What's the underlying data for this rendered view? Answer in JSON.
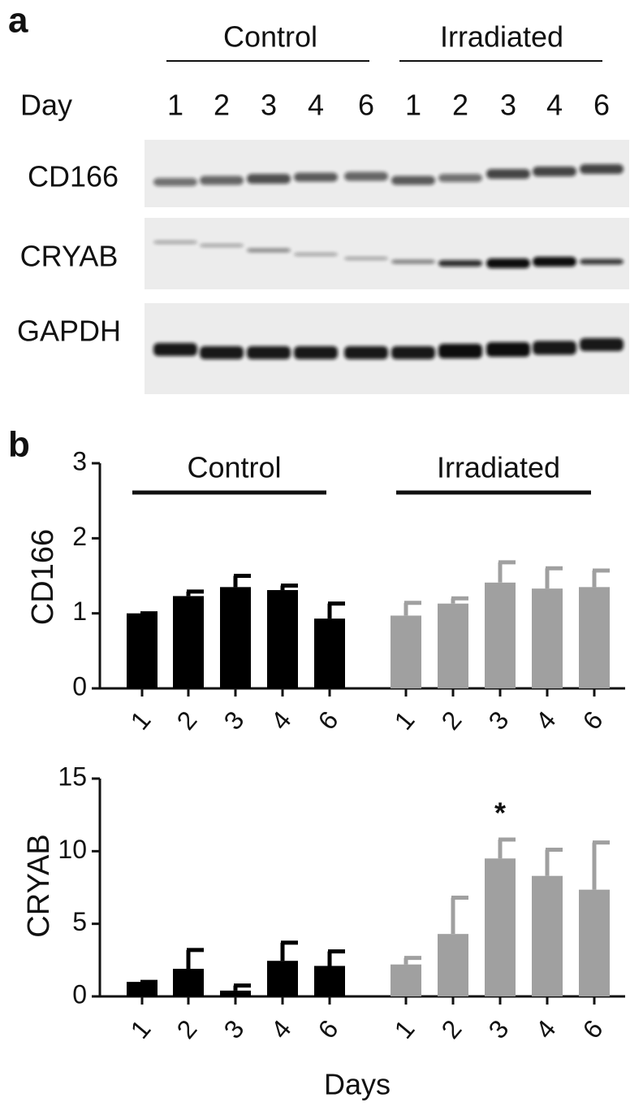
{
  "panel_a": {
    "label": "a",
    "groups": [
      "Control",
      "Irradiated"
    ],
    "day_label": "Day",
    "days": [
      "1",
      "2",
      "3",
      "4",
      "6"
    ],
    "rows": [
      "CD166",
      "CRYAB",
      "GAPDH"
    ]
  },
  "panel_b": {
    "label": "b"
  },
  "chart_data": [
    {
      "type": "bar",
      "y_label": "CD166",
      "categories": [
        "1",
        "2",
        "3",
        "4",
        "6"
      ],
      "series": [
        {
          "name": "Control",
          "color": "#000000",
          "values": [
            1.0,
            1.23,
            1.35,
            1.31,
            0.93
          ],
          "errors": [
            0,
            0.06,
            0.15,
            0.06,
            0.2
          ]
        },
        {
          "name": "Irradiated",
          "color": "#a0a0a0",
          "values": [
            0.97,
            1.13,
            1.41,
            1.33,
            1.35
          ],
          "errors": [
            0.17,
            0.07,
            0.27,
            0.27,
            0.22
          ]
        }
      ],
      "ylim": [
        0,
        3
      ],
      "yticks": [
        0,
        1,
        2,
        3
      ]
    },
    {
      "type": "bar",
      "y_label": "CRYAB",
      "x_label": "Days",
      "categories": [
        "1",
        "2",
        "3",
        "4",
        "6"
      ],
      "series": [
        {
          "name": "Control",
          "color": "#000000",
          "values": [
            1.0,
            1.9,
            0.4,
            2.45,
            2.1
          ],
          "errors": [
            0,
            1.3,
            0.35,
            1.25,
            1.0
          ]
        },
        {
          "name": "Irradiated",
          "color": "#a0a0a0",
          "values": [
            2.2,
            4.3,
            9.5,
            8.3,
            7.35
          ],
          "errors": [
            0.45,
            2.5,
            1.3,
            1.8,
            3.25
          ]
        }
      ],
      "ylim": [
        0,
        15
      ],
      "yticks": [
        0,
        5,
        10,
        15
      ],
      "annotations": [
        {
          "text": "*"
        }
      ]
    }
  ]
}
